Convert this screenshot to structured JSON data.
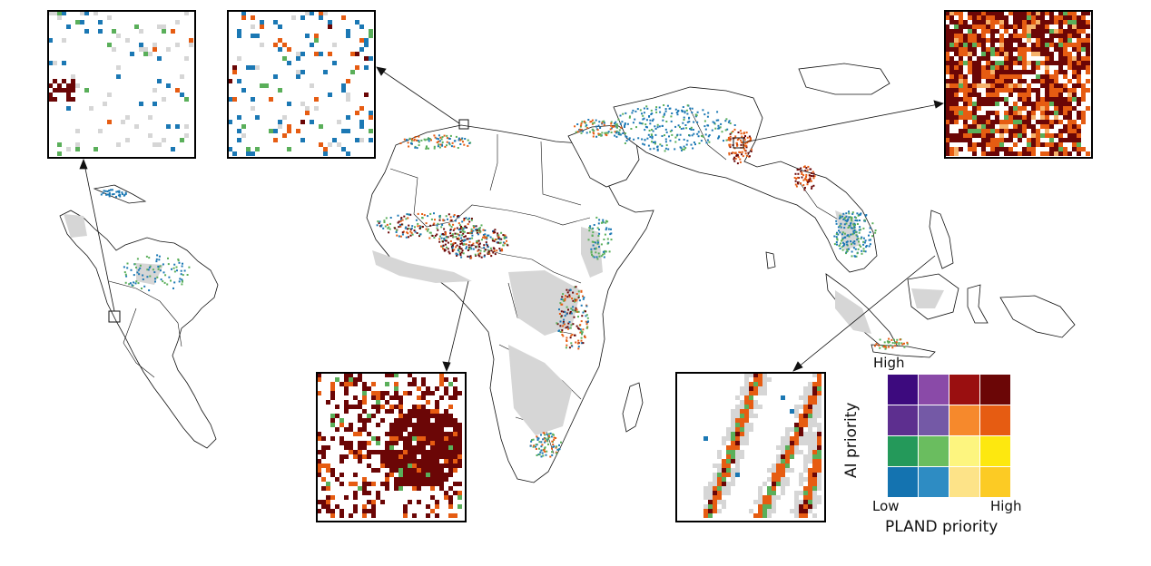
{
  "legend": {
    "y_title": "AI priority",
    "x_title": "PLAND priority",
    "y_high": "High",
    "x_low": "Low",
    "x_high": "High",
    "grid": [
      [
        "#3d0a7e",
        "#8a4aa8",
        "#9a0f10",
        "#6b0606"
      ],
      [
        "#5d2f8f",
        "#7459a6",
        "#f6892c",
        "#e65c12"
      ],
      [
        "#24995a",
        "#6abd5f",
        "#fdf57f",
        "#fde80f"
      ],
      [
        "#1473b0",
        "#2e8cc3",
        "#fde388",
        "#fccb24"
      ]
    ]
  },
  "palette": {
    "land": "#ffffff",
    "border": "#111111",
    "nodata": "#d6d6d6",
    "high_high": "#6b0606",
    "orange": "#e65c12",
    "green": "#5aaf5a",
    "blue": "#1b78b4"
  },
  "insets": [
    {
      "id": "inset-americas",
      "theme": "scattered-blue-green"
    },
    {
      "id": "inset-north-africa",
      "theme": "scattered-blue-orange"
    },
    {
      "id": "inset-china",
      "theme": "dense-red-orange"
    },
    {
      "id": "inset-west-africa",
      "theme": "dense-red"
    },
    {
      "id": "inset-southeast-asia",
      "theme": "coastal-strips"
    }
  ]
}
